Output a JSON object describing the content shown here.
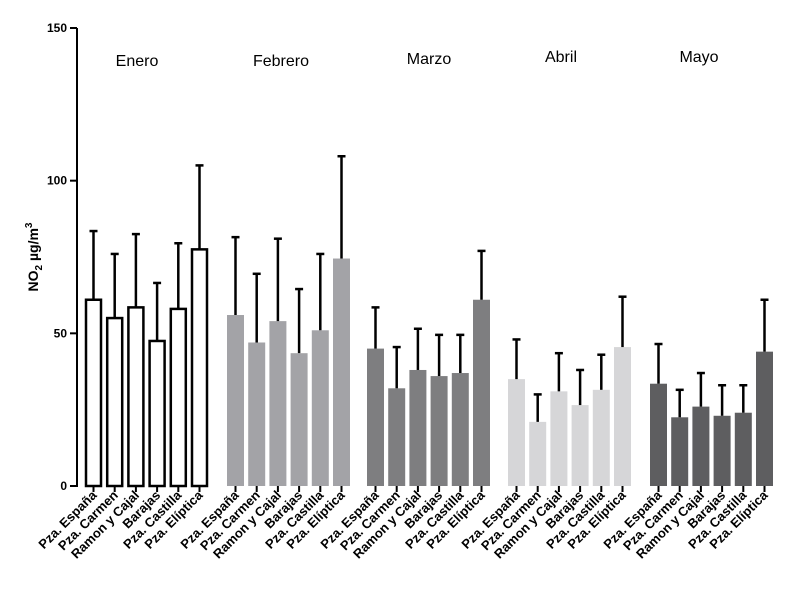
{
  "chart_data": {
    "type": "bar",
    "ylabel": {
      "prefix": "NO",
      "sub": "2",
      "middle": " µg/m",
      "sup": "3"
    },
    "ylim": [
      0,
      150
    ],
    "yticks": [
      0,
      50,
      100,
      150
    ],
    "categories": [
      "Pza. España",
      "Pza. Carmen",
      "Ramon y Cajal",
      "Barajas",
      "Pza. Castilla",
      "Pza. Elíptica"
    ],
    "grid": false,
    "series": [
      {
        "name": "Enero",
        "color": "#ffffff",
        "stroke": "#000000",
        "values": [
          61,
          55,
          58.5,
          47.5,
          58,
          77.5
        ],
        "errors": [
          22.5,
          21,
          24,
          19,
          21.5,
          27.5
        ]
      },
      {
        "name": "Febrero",
        "color": "#a3a3a7",
        "stroke": "none",
        "values": [
          56,
          47,
          54,
          43.5,
          51,
          74.5
        ],
        "errors": [
          25.5,
          22.5,
          27,
          21,
          25,
          33.5
        ]
      },
      {
        "name": "Marzo",
        "color": "#7e7e80",
        "stroke": "none",
        "values": [
          45,
          32,
          38,
          36,
          37,
          61
        ],
        "errors": [
          13.5,
          13.5,
          13.5,
          13.5,
          12.5,
          16
        ]
      },
      {
        "name": "Abril",
        "color": "#d6d6d8",
        "stroke": "none",
        "values": [
          35,
          21,
          31,
          26.5,
          31.5,
          45.5
        ],
        "errors": [
          13,
          9,
          12.5,
          11.5,
          11.5,
          16.5
        ]
      },
      {
        "name": "Mayo",
        "color": "#5e5e60",
        "stroke": "none",
        "values": [
          33.5,
          22.5,
          26,
          23,
          24,
          44
        ],
        "errors": [
          13,
          9,
          11,
          10,
          9,
          17
        ]
      }
    ]
  }
}
